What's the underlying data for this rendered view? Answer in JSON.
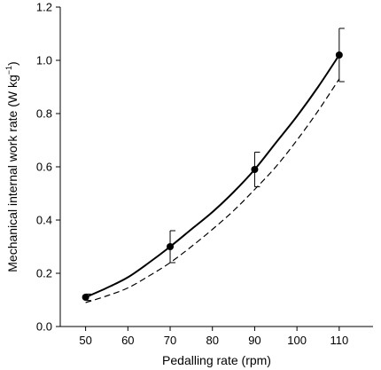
{
  "chart_data": {
    "type": "line",
    "xlabel": "Pedalling rate (rpm)",
    "ylabel": {
      "main": "Mechanical internal work rate (W kg",
      "sup": "−1",
      "close": ")"
    },
    "xlim": [
      44,
      118
    ],
    "ylim": [
      0,
      1.2
    ],
    "xticks": [
      "50",
      "60",
      "70",
      "80",
      "90",
      "100",
      "110"
    ],
    "yticks": [
      "0.0",
      "0.2",
      "0.4",
      "0.6",
      "0.8",
      "1.0",
      "1.2"
    ],
    "grid": false,
    "series": [
      {
        "style": "solid-with-markers",
        "points": [
          {
            "x": 50,
            "y": 0.11,
            "err": 0.012
          },
          {
            "x": 70,
            "y": 0.3,
            "err": 0.06
          },
          {
            "x": 90,
            "y": 0.59,
            "err": 0.065
          },
          {
            "x": 110,
            "y": 1.02,
            "err": 0.1
          }
        ],
        "curve": {
          "x": [
            50,
            55,
            60,
            65,
            70,
            75,
            80,
            85,
            90,
            95,
            100,
            105,
            110
          ],
          "y": [
            0.11,
            0.145,
            0.185,
            0.24,
            0.3,
            0.365,
            0.43,
            0.505,
            0.59,
            0.69,
            0.79,
            0.9,
            1.02
          ]
        }
      },
      {
        "style": "dashed",
        "curve": {
          "x": [
            50,
            55,
            60,
            65,
            70,
            75,
            80,
            85,
            90,
            95,
            100,
            105,
            110
          ],
          "y": [
            0.09,
            0.115,
            0.145,
            0.19,
            0.24,
            0.3,
            0.365,
            0.435,
            0.515,
            0.6,
            0.7,
            0.81,
            0.93
          ]
        }
      }
    ]
  }
}
